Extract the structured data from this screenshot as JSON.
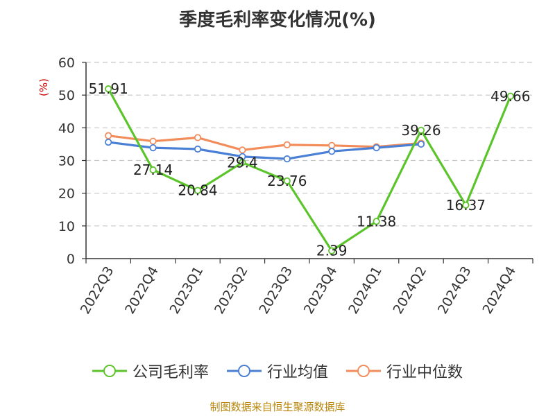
{
  "chart_data": {
    "type": "line",
    "title": "季度毛利率变化情况(%)",
    "ylabel": "(%)",
    "xlabel": "",
    "categories": [
      "2022Q3",
      "2022Q4",
      "2023Q1",
      "2023Q2",
      "2023Q3",
      "2023Q4",
      "2024Q1",
      "2024Q2",
      "2024Q3",
      "2024Q4"
    ],
    "ylim": [
      0,
      60
    ],
    "yticks": [
      0,
      10,
      20,
      30,
      40,
      50,
      60
    ],
    "grid": true,
    "legend_position": "bottom",
    "series": [
      {
        "name": "公司毛利率",
        "color": "#5bc42a",
        "values": [
          51.91,
          27.14,
          20.84,
          29.4,
          23.76,
          2.39,
          11.38,
          39.26,
          16.37,
          49.66
        ],
        "labels": [
          "51.91",
          "27.14",
          "20.84",
          "29.4",
          "23.76",
          "2.39",
          "11.38",
          "39.26",
          "16.37",
          "49.66"
        ]
      },
      {
        "name": "行业均值",
        "color": "#4a7fd6",
        "values": [
          35.6,
          33.9,
          33.5,
          31.2,
          30.5,
          32.8,
          33.9,
          35.0,
          null,
          null
        ]
      },
      {
        "name": "行业中位数",
        "color": "#f28c5a",
        "values": [
          37.6,
          35.9,
          37.0,
          33.2,
          34.8,
          34.6,
          34.2,
          35.3,
          null,
          null
        ]
      }
    ]
  },
  "source": "制图数据来自恒生聚源数据库"
}
